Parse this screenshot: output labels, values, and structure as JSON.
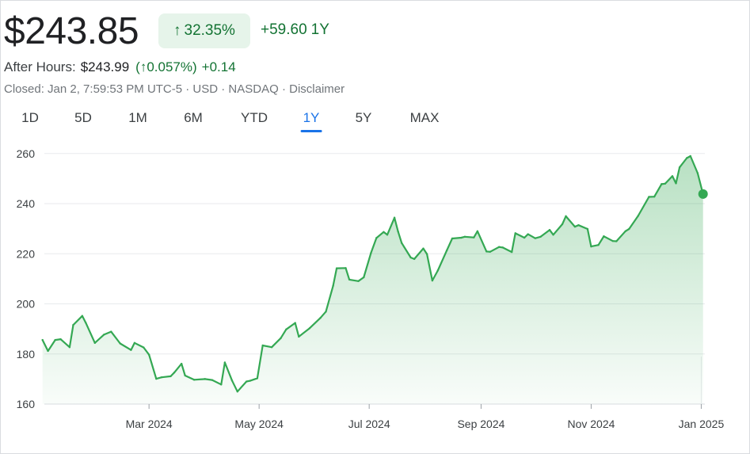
{
  "quote": {
    "price": "$243.85",
    "change_pct": "32.35%",
    "change_abs": "+59.60",
    "period": "1Y",
    "after_hours_label": "After Hours:",
    "after_hours_price": "$243.99",
    "after_hours_pct": "(↑0.057%)",
    "after_hours_change": "+0.14",
    "closed_info": "Closed: Jan 2, 7:59:53 PM UTC-5 · USD · NASDAQ · Disclaimer"
  },
  "tabs": [
    {
      "label": "1D"
    },
    {
      "label": "5D"
    },
    {
      "label": "1M"
    },
    {
      "label": "6M"
    },
    {
      "label": "YTD"
    },
    {
      "label": "1Y",
      "active": true
    },
    {
      "label": "5Y"
    },
    {
      "label": "MAX"
    }
  ],
  "icons": {
    "up_arrow": "arrow-up-icon"
  },
  "colors": {
    "positive": "#137333",
    "positive_bg": "#e6f4ea",
    "line": "#34a853",
    "active_tab": "#1a73e8",
    "grid": "#e8eaed"
  },
  "chart_data": {
    "type": "area",
    "title": "",
    "xlabel": "",
    "ylabel": "",
    "ylim": [
      160,
      265
    ],
    "xlim": [
      "2024-01-03",
      "2025-01-03"
    ],
    "y_ticks": [
      160,
      180,
      200,
      220,
      240,
      260
    ],
    "x_tick_labels": [
      {
        "date": "2024-03-01",
        "label": "Mar 2024"
      },
      {
        "date": "2024-05-01",
        "label": "May 2024"
      },
      {
        "date": "2024-07-01",
        "label": "Jul 2024"
      },
      {
        "date": "2024-09-01",
        "label": "Sep 2024"
      },
      {
        "date": "2024-11-01",
        "label": "Nov 2024"
      },
      {
        "date": "2025-01-01",
        "label": "Jan 2025"
      }
    ],
    "grid": true,
    "legend": "none",
    "series": [
      {
        "points": [
          [
            "2024-01-02",
            185.6
          ],
          [
            "2024-01-05",
            181.2
          ],
          [
            "2024-01-09",
            185.6
          ],
          [
            "2024-01-12",
            185.9
          ],
          [
            "2024-01-17",
            182.7
          ],
          [
            "2024-01-19",
            191.6
          ],
          [
            "2024-01-24",
            195.2
          ],
          [
            "2024-01-26",
            192.4
          ],
          [
            "2024-01-31",
            184.4
          ],
          [
            "2024-02-05",
            187.7
          ],
          [
            "2024-02-09",
            188.9
          ],
          [
            "2024-02-14",
            184.2
          ],
          [
            "2024-02-20",
            181.6
          ],
          [
            "2024-02-22",
            184.4
          ],
          [
            "2024-02-27",
            182.6
          ],
          [
            "2024-03-01",
            179.7
          ],
          [
            "2024-03-05",
            170.1
          ],
          [
            "2024-03-08",
            170.7
          ],
          [
            "2024-03-13",
            171.1
          ],
          [
            "2024-03-15",
            172.6
          ],
          [
            "2024-03-19",
            176.1
          ],
          [
            "2024-03-21",
            171.4
          ],
          [
            "2024-03-26",
            169.7
          ],
          [
            "2024-04-01",
            170.0
          ],
          [
            "2024-04-05",
            169.6
          ],
          [
            "2024-04-10",
            167.8
          ],
          [
            "2024-04-12",
            176.6
          ],
          [
            "2024-04-16",
            169.4
          ],
          [
            "2024-04-19",
            165.0
          ],
          [
            "2024-04-24",
            169.0
          ],
          [
            "2024-04-26",
            169.3
          ],
          [
            "2024-04-30",
            170.3
          ],
          [
            "2024-05-03",
            183.4
          ],
          [
            "2024-05-08",
            182.7
          ],
          [
            "2024-05-13",
            186.3
          ],
          [
            "2024-05-16",
            189.8
          ],
          [
            "2024-05-21",
            192.4
          ],
          [
            "2024-05-23",
            186.9
          ],
          [
            "2024-05-29",
            190.3
          ],
          [
            "2024-06-04",
            194.4
          ],
          [
            "2024-06-07",
            196.9
          ],
          [
            "2024-06-11",
            207.2
          ],
          [
            "2024-06-13",
            214.2
          ],
          [
            "2024-06-18",
            214.3
          ],
          [
            "2024-06-20",
            209.7
          ],
          [
            "2024-06-25",
            209.1
          ],
          [
            "2024-06-28",
            210.6
          ],
          [
            "2024-07-02",
            220.3
          ],
          [
            "2024-07-05",
            226.3
          ],
          [
            "2024-07-09",
            228.7
          ],
          [
            "2024-07-11",
            227.6
          ],
          [
            "2024-07-15",
            234.4
          ],
          [
            "2024-07-17",
            228.9
          ],
          [
            "2024-07-19",
            224.3
          ],
          [
            "2024-07-24",
            218.5
          ],
          [
            "2024-07-26",
            217.9
          ],
          [
            "2024-07-31",
            222.1
          ],
          [
            "2024-08-02",
            219.9
          ],
          [
            "2024-08-05",
            209.3
          ],
          [
            "2024-08-08",
            213.3
          ],
          [
            "2024-08-13",
            221.3
          ],
          [
            "2024-08-16",
            226.1
          ],
          [
            "2024-08-21",
            226.4
          ],
          [
            "2024-08-23",
            226.8
          ],
          [
            "2024-08-28",
            226.5
          ],
          [
            "2024-08-30",
            229.0
          ],
          [
            "2024-09-04",
            220.9
          ],
          [
            "2024-09-06",
            220.8
          ],
          [
            "2024-09-11",
            222.7
          ],
          [
            "2024-09-13",
            222.5
          ],
          [
            "2024-09-18",
            220.7
          ],
          [
            "2024-09-20",
            228.2
          ],
          [
            "2024-09-25",
            226.4
          ],
          [
            "2024-09-27",
            227.8
          ],
          [
            "2024-10-01",
            226.2
          ],
          [
            "2024-10-04",
            226.8
          ],
          [
            "2024-10-09",
            229.5
          ],
          [
            "2024-10-11",
            227.6
          ],
          [
            "2024-10-16",
            231.8
          ],
          [
            "2024-10-18",
            235.0
          ],
          [
            "2024-10-23",
            230.8
          ],
          [
            "2024-10-25",
            231.4
          ],
          [
            "2024-10-30",
            229.9
          ],
          [
            "2024-11-01",
            222.9
          ],
          [
            "2024-11-05",
            223.5
          ],
          [
            "2024-11-08",
            227.0
          ],
          [
            "2024-11-13",
            225.1
          ],
          [
            "2024-11-15",
            225.0
          ],
          [
            "2024-11-20",
            229.0
          ],
          [
            "2024-11-22",
            229.9
          ],
          [
            "2024-11-27",
            235.1
          ],
          [
            "2024-12-03",
            242.7
          ],
          [
            "2024-12-06",
            242.8
          ],
          [
            "2024-12-10",
            247.8
          ],
          [
            "2024-12-12",
            248.0
          ],
          [
            "2024-12-16",
            251.0
          ],
          [
            "2024-12-18",
            248.1
          ],
          [
            "2024-12-20",
            254.5
          ],
          [
            "2024-12-24",
            258.2
          ],
          [
            "2024-12-26",
            259.0
          ],
          [
            "2024-12-30",
            252.2
          ],
          [
            "2025-01-02",
            243.85
          ]
        ]
      }
    ]
  }
}
